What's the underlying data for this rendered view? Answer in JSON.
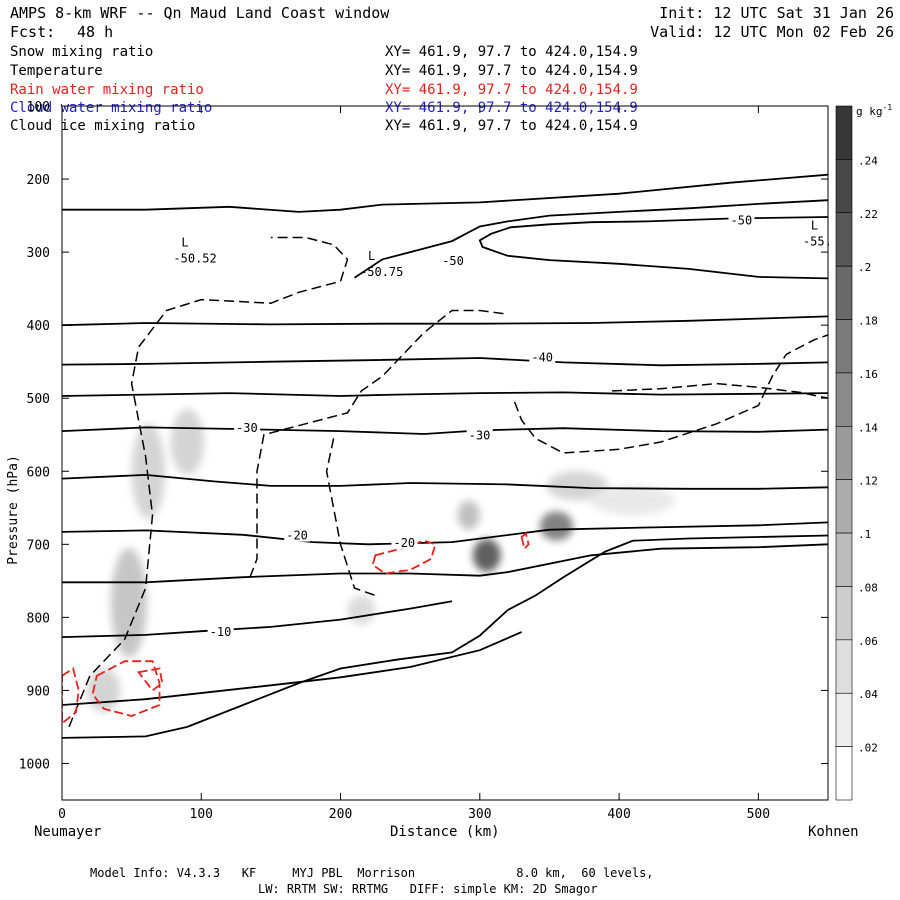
{
  "header": {
    "title": "AMPS 8-km WRF -- Qn Maud Land Coast window",
    "fcst_label": "Fcst:",
    "fcst_value": "48 h",
    "init": "Init: 12 UTC Sat 31 Jan 26",
    "valid": "Valid: 12 UTC Mon 02 Feb 26"
  },
  "fields": [
    {
      "name": "Snow mixing ratio",
      "xy": "XY= 461.9, 97.7 to 424.0,154.9",
      "color": "#000000"
    },
    {
      "name": "Temperature",
      "xy": "XY= 461.9, 97.7 to 424.0,154.9",
      "color": "#000000"
    },
    {
      "name": "Rain water mixing ratio",
      "xy": "XY= 461.9, 97.7 to 424.0,154.9",
      "color": "#e8201c"
    },
    {
      "name": "Cloud water mixing ratio",
      "xy": "XY= 461.9, 97.7 to 424.0,154.9",
      "color": "#2222cc"
    },
    {
      "name": "Cloud ice mixing ratio",
      "xy": "XY= 461.9, 97.7 to 424.0,154.9",
      "color": "#000000"
    }
  ],
  "footer": {
    "line1": "Model Info: V4.3.3   KF     MYJ PBL  Morrison              8.0 km,  60 levels,",
    "line2": "LW: RRTM SW: RRTMG   DIFF: simple KM: 2D Smagor"
  },
  "chart_data": {
    "type": "contour-cross-section",
    "xlabel": "Distance (km)",
    "ylabel": "Pressure (hPa)",
    "xlim": [
      0,
      550
    ],
    "ylim": [
      1050,
      100
    ],
    "x_ticks": [
      0,
      100,
      200,
      300,
      400,
      500
    ],
    "y_ticks": [
      100,
      200,
      300,
      400,
      500,
      600,
      700,
      800,
      900,
      1000
    ],
    "left_endpoint": "Neumayer",
    "right_endpoint": "Kohnen",
    "colorbar": {
      "unit": "g kg",
      "unit_exp": "-1",
      "ticks": [
        ".02",
        ".04",
        ".06",
        ".08",
        ".1",
        ".12",
        ".14",
        ".16",
        ".18",
        ".2",
        ".22",
        ".24"
      ]
    },
    "temperature_contours": [
      {
        "level": -5,
        "points": [
          [
            0,
            920
          ],
          [
            60,
            912
          ],
          [
            150,
            893
          ],
          [
            200,
            882
          ],
          [
            250,
            868
          ],
          [
            300,
            845
          ],
          [
            330,
            820
          ]
        ]
      },
      {
        "level": -10,
        "points": [
          [
            0,
            827
          ],
          [
            60,
            824
          ],
          [
            100,
            819
          ],
          [
            150,
            813
          ],
          [
            200,
            803
          ],
          [
            250,
            788
          ],
          [
            280,
            778
          ]
        ]
      },
      {
        "level": -15,
        "points": [
          [
            0,
            752
          ],
          [
            60,
            752
          ],
          [
            130,
            745
          ],
          [
            200,
            740
          ],
          [
            250,
            740
          ],
          [
            300,
            743
          ],
          [
            320,
            738
          ],
          [
            380,
            715
          ],
          [
            430,
            706
          ],
          [
            500,
            704
          ],
          [
            550,
            700
          ]
        ]
      },
      {
        "level": -20,
        "points": [
          [
            0,
            683
          ],
          [
            60,
            681
          ],
          [
            130,
            687
          ],
          [
            180,
            697
          ],
          [
            220,
            700
          ],
          [
            280,
            697
          ],
          [
            350,
            680
          ],
          [
            420,
            677
          ],
          [
            500,
            674
          ],
          [
            550,
            670
          ]
        ]
      },
      {
        "level": -25,
        "points": [
          [
            0,
            610
          ],
          [
            60,
            605
          ],
          [
            110,
            614
          ],
          [
            150,
            620
          ],
          [
            200,
            620
          ],
          [
            250,
            616
          ],
          [
            320,
            618
          ],
          [
            380,
            623
          ],
          [
            450,
            624
          ],
          [
            500,
            624
          ],
          [
            550,
            622
          ]
        ]
      },
      {
        "level": -30,
        "points": [
          [
            0,
            545
          ],
          [
            60,
            540
          ],
          [
            120,
            542
          ],
          [
            200,
            545
          ],
          [
            260,
            549
          ],
          [
            300,
            544
          ],
          [
            360,
            541
          ],
          [
            430,
            545
          ],
          [
            500,
            546
          ],
          [
            550,
            543
          ]
        ]
      },
      {
        "level": -35,
        "points": [
          [
            0,
            497
          ],
          [
            60,
            495
          ],
          [
            120,
            493
          ],
          [
            200,
            497
          ],
          [
            240,
            495
          ],
          [
            300,
            493
          ],
          [
            360,
            492
          ],
          [
            430,
            495
          ],
          [
            500,
            494
          ],
          [
            550,
            493
          ]
        ]
      },
      {
        "level": -40,
        "points": [
          [
            0,
            454
          ],
          [
            60,
            453
          ],
          [
            150,
            450
          ],
          [
            220,
            448
          ],
          [
            300,
            445
          ],
          [
            360,
            451
          ],
          [
            430,
            455
          ],
          [
            500,
            453
          ],
          [
            550,
            451
          ]
        ]
      },
      {
        "level": -45,
        "points": [
          [
            0,
            400
          ],
          [
            60,
            397
          ],
          [
            150,
            399
          ],
          [
            230,
            398
          ],
          [
            300,
            398
          ],
          [
            380,
            397
          ],
          [
            450,
            394
          ],
          [
            500,
            391
          ],
          [
            550,
            388
          ]
        ]
      },
      {
        "level": -50,
        "points": [
          [
            0,
            242
          ],
          [
            60,
            242
          ],
          [
            120,
            238
          ],
          [
            170,
            245
          ],
          [
            200,
            242
          ],
          [
            230,
            235
          ],
          [
            300,
            232
          ],
          [
            400,
            220
          ],
          [
            480,
            205
          ],
          [
            550,
            194
          ]
        ]
      },
      {
        "level": -50,
        "points": [
          [
            210,
            335
          ],
          [
            230,
            310
          ],
          [
            260,
            295
          ],
          [
            280,
            285
          ],
          [
            300,
            265
          ],
          [
            320,
            258
          ],
          [
            350,
            250
          ],
          [
            400,
            245
          ],
          [
            450,
            240
          ],
          [
            500,
            234
          ],
          [
            550,
            229
          ]
        ]
      },
      {
        "level": -55,
        "points": [
          [
            550,
            336
          ],
          [
            500,
            334
          ],
          [
            450,
            323
          ],
          [
            400,
            316
          ],
          [
            350,
            311
          ],
          [
            320,
            305
          ],
          [
            302,
            293
          ],
          [
            300,
            284
          ],
          [
            308,
            275
          ],
          [
            322,
            266
          ],
          [
            350,
            262
          ],
          [
            380,
            259
          ],
          [
            420,
            258
          ],
          [
            480,
            254
          ],
          [
            550,
            252
          ]
        ]
      }
    ],
    "temperature_labels": [
      {
        "text": "-50",
        "x": 480,
        "y": 257
      },
      {
        "text": "-50",
        "x": 273,
        "y": 312
      },
      {
        "text": "-40",
        "x": 337,
        "y": 444
      },
      {
        "text": "-30",
        "x": 125,
        "y": 541
      },
      {
        "text": "-30",
        "x": 292,
        "y": 551
      },
      {
        "text": "-20",
        "x": 161,
        "y": 688
      },
      {
        "text": "-20",
        "x": 238,
        "y": 698
      },
      {
        "text": "-10",
        "x": 106,
        "y": 820
      }
    ],
    "low_markers": [
      {
        "letter": "L",
        "value": "-50.52",
        "x": 80,
        "y": 303
      },
      {
        "letter": "L",
        "value": "-50.75",
        "x": 214,
        "y": 322
      },
      {
        "letter": "L",
        "value": "-55.",
        "x": 532,
        "y": 280
      }
    ],
    "snow_shading": [
      {
        "x": 48,
        "p": 780,
        "sx": 13,
        "sp": 150,
        "amp": 0.07
      },
      {
        "x": 62,
        "p": 600,
        "sx": 12,
        "sp": 130,
        "amp": 0.05
      },
      {
        "x": 90,
        "p": 560,
        "sx": 12,
        "sp": 90,
        "amp": 0.05
      },
      {
        "x": 30,
        "p": 900,
        "sx": 12,
        "sp": 60,
        "amp": 0.05
      },
      {
        "x": 215,
        "p": 790,
        "sx": 10,
        "sp": 40,
        "amp": 0.04
      },
      {
        "x": 305,
        "p": 715,
        "sx": 10,
        "sp": 45,
        "amp": 0.22
      },
      {
        "x": 292,
        "p": 660,
        "sx": 8,
        "sp": 40,
        "amp": 0.08
      },
      {
        "x": 355,
        "p": 675,
        "sx": 12,
        "sp": 40,
        "amp": 0.17
      },
      {
        "x": 370,
        "p": 620,
        "sx": 22,
        "sp": 40,
        "amp": 0.05
      },
      {
        "x": 410,
        "p": 640,
        "sx": 30,
        "sp": 40,
        "amp": 0.02
      }
    ],
    "cloud_ice_contours": [
      {
        "points": [
          [
            5,
            950
          ],
          [
            20,
            880
          ],
          [
            45,
            830
          ],
          [
            60,
            760
          ],
          [
            65,
            660
          ],
          [
            60,
            580
          ],
          [
            50,
            480
          ],
          [
            55,
            430
          ],
          [
            75,
            380
          ],
          [
            100,
            365
          ],
          [
            150,
            370
          ],
          [
            170,
            355
          ],
          [
            200,
            340
          ],
          [
            205,
            310
          ],
          [
            195,
            290
          ],
          [
            175,
            280
          ],
          [
            150,
            280
          ]
        ]
      },
      {
        "points": [
          [
            135,
            745
          ],
          [
            140,
            720
          ],
          [
            140,
            600
          ],
          [
            145,
            550
          ],
          [
            165,
            540
          ],
          [
            185,
            530
          ],
          [
            205,
            520
          ],
          [
            215,
            490
          ],
          [
            230,
            470
          ],
          [
            245,
            440
          ],
          [
            255,
            420
          ],
          [
            260,
            410
          ],
          [
            280,
            380
          ],
          [
            300,
            380
          ],
          [
            320,
            385
          ]
        ]
      },
      {
        "points": [
          [
            195,
            555
          ],
          [
            190,
            600
          ],
          [
            200,
            700
          ],
          [
            210,
            760
          ],
          [
            225,
            770
          ]
        ]
      },
      {
        "points": [
          [
            325,
            505
          ],
          [
            330,
            530
          ],
          [
            340,
            555
          ],
          [
            360,
            575
          ],
          [
            400,
            570
          ],
          [
            430,
            560
          ],
          [
            470,
            535
          ],
          [
            500,
            510
          ],
          [
            510,
            470
          ],
          [
            520,
            440
          ],
          [
            540,
            420
          ],
          [
            555,
            410
          ]
        ]
      },
      {
        "points": [
          [
            395,
            490
          ],
          [
            430,
            487
          ],
          [
            470,
            480
          ],
          [
            500,
            485
          ],
          [
            530,
            492
          ],
          [
            550,
            500
          ]
        ]
      }
    ],
    "rain_contours": [
      {
        "points": [
          [
            0,
            880
          ],
          [
            8,
            870
          ],
          [
            12,
            900
          ],
          [
            10,
            930
          ],
          [
            0,
            945
          ]
        ]
      },
      {
        "points": [
          [
            25,
            880
          ],
          [
            45,
            860
          ],
          [
            65,
            860
          ],
          [
            70,
            890
          ],
          [
            70,
            920
          ],
          [
            50,
            935
          ],
          [
            30,
            925
          ],
          [
            22,
            905
          ]
        ]
      },
      {
        "points": [
          [
            55,
            875
          ],
          [
            70,
            870
          ],
          [
            72,
            890
          ],
          [
            65,
            900
          ]
        ]
      },
      {
        "points": [
          [
            225,
            715
          ],
          [
            245,
            705
          ],
          [
            260,
            695
          ],
          [
            268,
            700
          ],
          [
            265,
            720
          ],
          [
            250,
            735
          ],
          [
            232,
            740
          ],
          [
            223,
            728
          ]
        ]
      },
      {
        "points": [
          [
            330,
            690
          ],
          [
            333,
            685
          ],
          [
            335,
            700
          ],
          [
            332,
            706
          ]
        ]
      }
    ],
    "terrain": [
      [
        0,
        965
      ],
      [
        60,
        963
      ],
      [
        90,
        950
      ],
      [
        130,
        920
      ],
      [
        170,
        890
      ],
      [
        200,
        870
      ],
      [
        240,
        858
      ],
      [
        280,
        848
      ],
      [
        300,
        825
      ],
      [
        320,
        790
      ],
      [
        340,
        770
      ],
      [
        360,
        745
      ],
      [
        390,
        710
      ],
      [
        410,
        695
      ],
      [
        450,
        692
      ],
      [
        500,
        690
      ],
      [
        550,
        688
      ]
    ]
  }
}
